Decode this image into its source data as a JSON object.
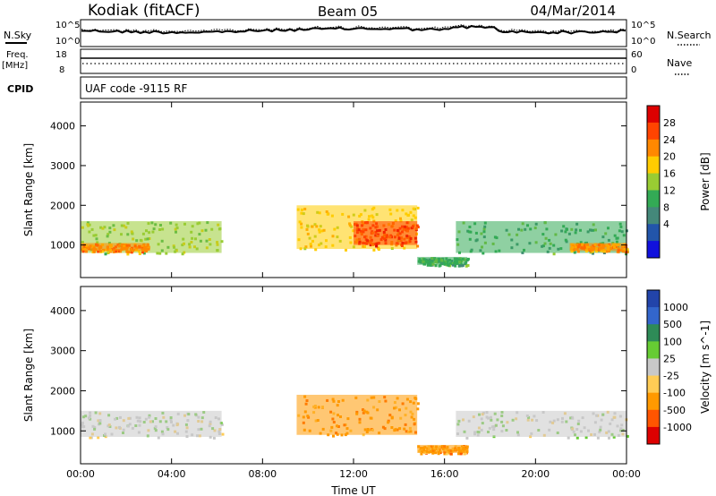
{
  "header": {
    "station": "Kodiak (fitACF)",
    "beam": "Beam 05",
    "date": "04/Mar/2014"
  },
  "params": {
    "nsky_label": "N.Sky",
    "nsky_top": "10^5",
    "nsky_bottom": "10^0",
    "nsearch_label": "N.Search",
    "nsearch_top": "10^5",
    "nsearch_bottom": "10^0",
    "freq_label_1": "Freq.",
    "freq_label_2": "[MHz]",
    "freq_top": "18",
    "freq_bottom": "8",
    "nave_label": "Nave",
    "nave_top": "60",
    "nave_bottom": "0",
    "cpid_label": "CPID",
    "cpid_text": "UAF code -9115 RF"
  },
  "chart_data": [
    {
      "type": "heatmap",
      "title": "",
      "xlabel": "Time UT",
      "ylabel": "Slant Range [km]",
      "xlim": [
        0,
        24
      ],
      "ylim": [
        180,
        4600
      ],
      "x_ticks": [
        "00:00",
        "04:00",
        "08:00",
        "12:00",
        "16:00",
        "20:00",
        "00:00"
      ],
      "y_ticks": [
        "1000",
        "2000",
        "3000",
        "4000"
      ],
      "colorbar": {
        "label": "Power [dB]",
        "ticks": [
          "28",
          "24",
          "20",
          "16",
          "12",
          "8",
          "4"
        ],
        "colors": [
          "#dd0000",
          "#ff4400",
          "#ff8800",
          "#ffcc00",
          "#99cc33",
          "#33aa55",
          "#44887a",
          "#2255aa",
          "#1111dd"
        ]
      },
      "regions": [
        {
          "t0": 0.0,
          "t1": 6.2,
          "r0": 800,
          "r1": 1600,
          "value_db": 16
        },
        {
          "t0": 0.0,
          "t1": 3.0,
          "r0": 850,
          "r1": 1050,
          "value_db": 26
        },
        {
          "t0": 9.5,
          "t1": 14.8,
          "r0": 900,
          "r1": 2000,
          "value_db": 20
        },
        {
          "t0": 12.0,
          "t1": 14.8,
          "r0": 1000,
          "r1": 1600,
          "value_db": 28
        },
        {
          "t0": 14.8,
          "t1": 17.0,
          "r0": 500,
          "r1": 700,
          "value_db": 12
        },
        {
          "t0": 16.5,
          "t1": 24.0,
          "r0": 800,
          "r1": 1600,
          "value_db": 14
        },
        {
          "t0": 21.5,
          "t1": 24.0,
          "r0": 850,
          "r1": 1050,
          "value_db": 26
        }
      ]
    },
    {
      "type": "heatmap",
      "title": "",
      "xlabel": "Time UT",
      "ylabel": "Slant Range [km]",
      "xlim": [
        0,
        24
      ],
      "ylim": [
        180,
        4600
      ],
      "x_ticks": [
        "00:00",
        "04:00",
        "08:00",
        "12:00",
        "16:00",
        "20:00",
        "00:00"
      ],
      "y_ticks": [
        "1000",
        "2000",
        "3000",
        "4000"
      ],
      "colorbar": {
        "label": "Velocity [m s^-1]",
        "ticks": [
          "1000",
          "500",
          "100",
          "25",
          "-25",
          "-100",
          "-500",
          "-1000"
        ],
        "colors": [
          "#2244aa",
          "#3366cc",
          "#2e8b57",
          "#66cc33",
          "#c8c8c8",
          "#ffcc55",
          "#ff9900",
          "#ff5500",
          "#dd0000"
        ]
      },
      "regions": [
        {
          "t0": 0.0,
          "t1": 6.2,
          "r0": 850,
          "r1": 1500,
          "value_ms": 0
        },
        {
          "t0": 9.5,
          "t1": 14.8,
          "r0": 900,
          "r1": 1900,
          "value_ms": -200
        },
        {
          "t0": 14.8,
          "t1": 17.0,
          "r0": 450,
          "r1": 650,
          "value_ms": -150
        },
        {
          "t0": 16.5,
          "t1": 24.0,
          "r0": 850,
          "r1": 1500,
          "value_ms": 0
        }
      ]
    }
  ]
}
